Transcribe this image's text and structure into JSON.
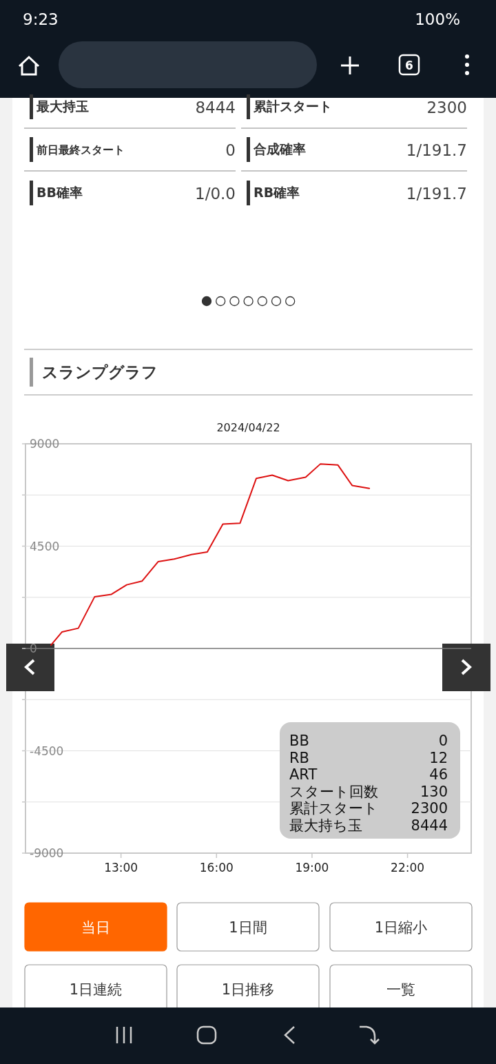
{
  "chart_data": [
    {
      "type": "other",
      "annotations": [
        "9:23",
        "6",
        "100%"
      ]
    },
    {
      "type": "other",
      "annotations": [
        "最大持玉",
        "8444",
        "累計スタート",
        "2300",
        "前日最終スタート",
        "0",
        "合成確率",
        "1/191.7",
        "BB確率",
        "1/0.0",
        "RB確率",
        "1/191.7"
      ]
    },
    {
      "type": "line",
      "title": "スランプグラフ",
      "subtitle": "2024/04/22",
      "x": [
        10.8,
        11.15,
        11.66,
        12.17,
        12.7,
        13.18,
        13.66,
        14.17,
        14.67,
        15.21,
        15.71,
        16.2,
        16.74,
        17.25,
        17.75,
        18.25,
        18.8,
        19.26,
        19.81,
        20.26,
        20.8
      ],
      "series": [
        {
          "color": "#dd1111",
          "values": [
            150,
            730,
            890,
            2270,
            2380,
            2800,
            2960,
            3820,
            3930,
            4130,
            4240,
            5470,
            5510,
            7480,
            7620,
            7380,
            7530,
            8110,
            8070,
            7170,
            7040
          ]
        }
      ],
      "xlim": [
        10,
        24
      ],
      "xticks": [
        {
          "value": 13,
          "label": "13:00"
        },
        {
          "value": 16,
          "label": "16:00"
        },
        {
          "value": 19,
          "label": "19:00"
        },
        {
          "value": 22,
          "label": "22:00"
        }
      ],
      "ylim": [
        -9000,
        9000
      ],
      "yticks": [
        9000,
        {
          "value": 6750,
          "label": null
        },
        4500,
        {
          "value": 2250,
          "label": null
        },
        0,
        {
          "value": -2250,
          "label": null
        },
        -4500,
        {
          "value": -6750,
          "label": null
        },
        -9000
      ],
      "grid": "y",
      "marker": "none",
      "line_style": "solid",
      "annotations": [
        "BB",
        "0",
        "RB",
        "12",
        "ART",
        "46",
        "スタート回数",
        "130",
        "累計スタート",
        "2300",
        "最大持ち玉",
        "8444"
      ]
    },
    {
      "type": "other",
      "annotations": [
        "当日",
        "1日間",
        "1日縮小",
        "1日連続",
        "1日推移",
        "一覧"
      ]
    }
  ]
}
